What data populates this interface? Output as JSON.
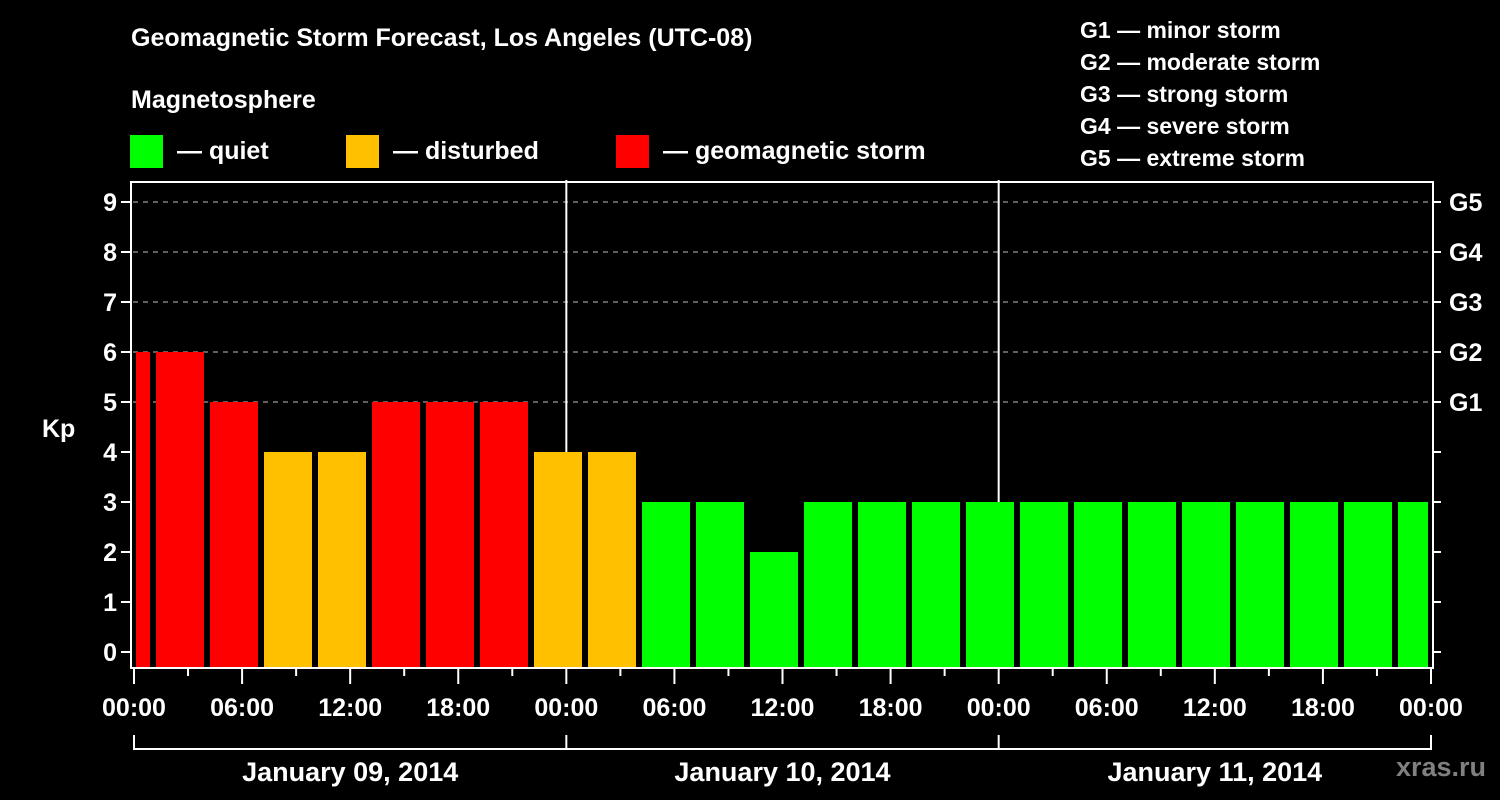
{
  "header": {
    "title": "Geomagnetic Storm Forecast, Los Angeles (UTC-08)",
    "subtitle": "Magnetosphere"
  },
  "legend": [
    {
      "label": "— quiet",
      "color": "#00ff00"
    },
    {
      "label": "— disturbed",
      "color": "#ffc000"
    },
    {
      "label": "— geomagnetic storm",
      "color": "#ff0000"
    }
  ],
  "g_scale": [
    "G1 — minor storm",
    "G2 — moderate storm",
    "G3 — strong storm",
    "G4 — severe storm",
    "G5 — extreme storm"
  ],
  "watermark": "xras.ru",
  "colors": {
    "quiet": "#00ff00",
    "disturbed": "#ffc000",
    "storm": "#ff0000",
    "grid": "#808080",
    "axis": "#ffffff",
    "background": "#000000"
  },
  "chart_data": {
    "type": "bar",
    "title": "Geomagnetic Storm Forecast, Los Angeles (UTC-08)",
    "ylabel": "Kp",
    "xlabel": "",
    "ylim": [
      0,
      9
    ],
    "yticks": [
      0,
      1,
      2,
      3,
      4,
      5,
      6,
      7,
      8,
      9
    ],
    "right_axis_labels": [
      {
        "kp": 5,
        "label": "G1"
      },
      {
        "kp": 6,
        "label": "G2"
      },
      {
        "kp": 7,
        "label": "G3"
      },
      {
        "kp": 8,
        "label": "G4"
      },
      {
        "kp": 9,
        "label": "G5"
      }
    ],
    "grid": true,
    "x_tick_labels": [
      "00:00",
      "06:00",
      "12:00",
      "18:00",
      "00:00",
      "06:00",
      "12:00",
      "18:00",
      "00:00",
      "06:00",
      "12:00",
      "18:00",
      "00:00"
    ],
    "days": [
      "January 09, 2014",
      "January 10, 2014",
      "January 11, 2014"
    ],
    "interval_hours": 3,
    "categories": [
      "Jan 09 00:00",
      "Jan 09 03:00",
      "Jan 09 06:00",
      "Jan 09 09:00",
      "Jan 09 12:00",
      "Jan 09 15:00",
      "Jan 09 18:00",
      "Jan 09 21:00",
      "Jan 10 00:00",
      "Jan 10 03:00",
      "Jan 10 06:00",
      "Jan 10 09:00",
      "Jan 10 12:00",
      "Jan 10 15:00",
      "Jan 10 18:00",
      "Jan 10 21:00",
      "Jan 11 00:00",
      "Jan 11 03:00",
      "Jan 11 06:00",
      "Jan 11 09:00",
      "Jan 11 12:00",
      "Jan 11 15:00",
      "Jan 11 18:00",
      "Jan 11 21:00"
    ],
    "values": [
      6,
      6,
      5,
      4,
      4,
      5,
      5,
      5,
      4,
      4,
      3,
      3,
      2,
      3,
      3,
      3,
      3,
      3,
      3,
      3,
      3,
      3,
      3,
      3
    ],
    "bars": [
      {
        "x0": 136,
        "x1": 150,
        "kp": 6,
        "status": "storm"
      },
      {
        "x0": 156,
        "x1": 204,
        "kp": 6,
        "status": "storm"
      },
      {
        "x0": 210,
        "x1": 258,
        "kp": 5,
        "status": "storm"
      },
      {
        "x0": 264,
        "x1": 312,
        "kp": 4,
        "status": "disturbed"
      },
      {
        "x0": 318,
        "x1": 366,
        "kp": 4,
        "status": "disturbed"
      },
      {
        "x0": 372,
        "x1": 420,
        "kp": 5,
        "status": "storm"
      },
      {
        "x0": 426,
        "x1": 474,
        "kp": 5,
        "status": "storm"
      },
      {
        "x0": 480,
        "x1": 528,
        "kp": 5,
        "status": "storm"
      },
      {
        "x0": 534,
        "x1": 582,
        "kp": 4,
        "status": "disturbed"
      },
      {
        "x0": 588,
        "x1": 636,
        "kp": 4,
        "status": "disturbed"
      },
      {
        "x0": 642,
        "x1": 690,
        "kp": 3,
        "status": "quiet"
      },
      {
        "x0": 696,
        "x1": 744,
        "kp": 3,
        "status": "quiet"
      },
      {
        "x0": 750,
        "x1": 798,
        "kp": 2,
        "status": "quiet"
      },
      {
        "x0": 804,
        "x1": 852,
        "kp": 3,
        "status": "quiet"
      },
      {
        "x0": 858,
        "x1": 906,
        "kp": 3,
        "status": "quiet"
      },
      {
        "x0": 912,
        "x1": 960,
        "kp": 3,
        "status": "quiet"
      },
      {
        "x0": 966,
        "x1": 1014,
        "kp": 3,
        "status": "quiet"
      },
      {
        "x0": 1020,
        "x1": 1068,
        "kp": 3,
        "status": "quiet"
      },
      {
        "x0": 1074,
        "x1": 1122,
        "kp": 3,
        "status": "quiet"
      },
      {
        "x0": 1128,
        "x1": 1176,
        "kp": 3,
        "status": "quiet"
      },
      {
        "x0": 1182,
        "x1": 1230,
        "kp": 3,
        "status": "quiet"
      },
      {
        "x0": 1236,
        "x1": 1284,
        "kp": 3,
        "status": "quiet"
      },
      {
        "x0": 1290,
        "x1": 1338,
        "kp": 3,
        "status": "quiet"
      },
      {
        "x0": 1344,
        "x1": 1392,
        "kp": 3,
        "status": "quiet"
      },
      {
        "x0": 1398,
        "x1": 1428,
        "kp": 3,
        "status": "quiet"
      }
    ],
    "legend_position": "top"
  }
}
